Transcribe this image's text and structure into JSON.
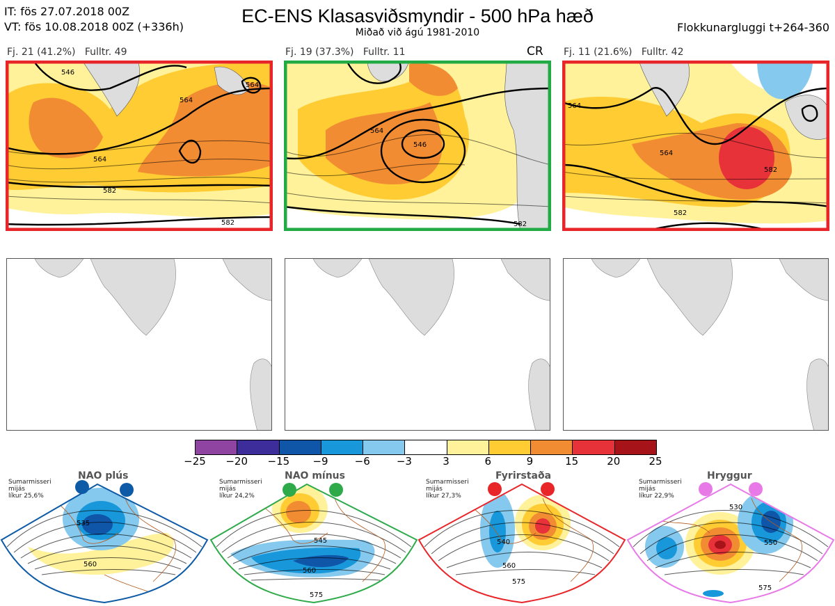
{
  "header": {
    "it_line": "IT: fös 27.07.2018 00Z",
    "vt_line": "VT: fös 10.08.2018 00Z  (+336h)",
    "title": "EC-ENS Klasasviðsmyndir - 500 hPa hæð",
    "subtitle": "Miðað við ágú 1981-2010",
    "window": "Flokkunargluggi t+264-360"
  },
  "clusters": [
    {
      "label": "Fj. 21 (41.2%)   Fulltr. 49",
      "border": "#e8262a",
      "cr": "",
      "contours": [
        "546",
        "564",
        "564",
        "564",
        "582",
        "582"
      ]
    },
    {
      "label": "Fj. 19 (37.3%)   Fulltr. 11",
      "border": "#22aa44",
      "cr": "CR",
      "contours": [
        "546",
        "564",
        "582"
      ]
    },
    {
      "label": "Fj. 11 (21.6%)   Fulltr. 42",
      "border": "#e8262a",
      "cr": "",
      "contours": [
        "564",
        "564",
        "582",
        "582"
      ]
    }
  ],
  "colorbar": {
    "colors": [
      "#8e44a0",
      "#3c2d9a",
      "#0f56a8",
      "#1898db",
      "#86c9ee",
      "#ffffff",
      "#fff29b",
      "#ffcc33",
      "#f28c33",
      "#e8323a",
      "#a61419"
    ],
    "ticks": [
      "−25",
      "−20",
      "−15",
      "−9",
      "−6",
      "−3",
      "3",
      "6",
      "9",
      "15",
      "20",
      "25"
    ]
  },
  "regimes": [
    {
      "name": "NAO plús",
      "color": "#0d5aa7",
      "info_1": "Sumarmisseri",
      "info_2": "mijás",
      "info_3": "líkur 25,6%",
      "contours": [
        "535",
        "560"
      ]
    },
    {
      "name": "NAO mínus",
      "color": "#2eaa4a",
      "info_1": "Sumarmisseri",
      "info_2": "mijás",
      "info_3": "líkur 24,2%",
      "contours": [
        "545",
        "560",
        "575"
      ]
    },
    {
      "name": "Fyrirstaða",
      "color": "#e8262a",
      "info_1": "Sumarmisseri",
      "info_2": "mijás",
      "info_3": "líkur 27,3%",
      "contours": [
        "540",
        "560",
        "575"
      ]
    },
    {
      "name": "Hryggur",
      "color": "#e87ae8",
      "info_1": "Sumarmisseri",
      "info_2": "mijás",
      "info_3": "líkur 22,9%",
      "contours": [
        "530",
        "550",
        "575"
      ]
    }
  ]
}
